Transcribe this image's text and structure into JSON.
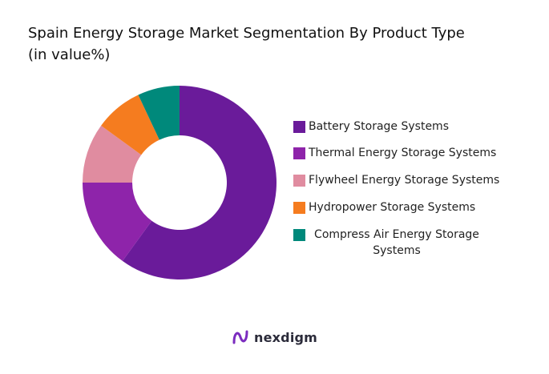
{
  "title_line1": "Spain Energy Storage Market Segmentation By Product Type",
  "title_line2": "(in value%)",
  "brand": "nexdigm",
  "chart_data": {
    "type": "pie",
    "donut": true,
    "title": "Spain Energy Storage Market Segmentation By Product Type",
    "subtitle": "(in value%)",
    "legend_position": "right",
    "categories": [
      "Battery Storage Systems",
      "Thermal Energy Storage Systems",
      "Flywheel Energy Storage Systems",
      "Hydropower Storage Systems",
      "Compress Air Energy Storage Systems"
    ],
    "values": [
      60,
      15,
      10,
      8,
      7
    ],
    "colors": [
      "#6a1b9a",
      "#8e24aa",
      "#e08ca0",
      "#f57c1f",
      "#00897b"
    ]
  }
}
